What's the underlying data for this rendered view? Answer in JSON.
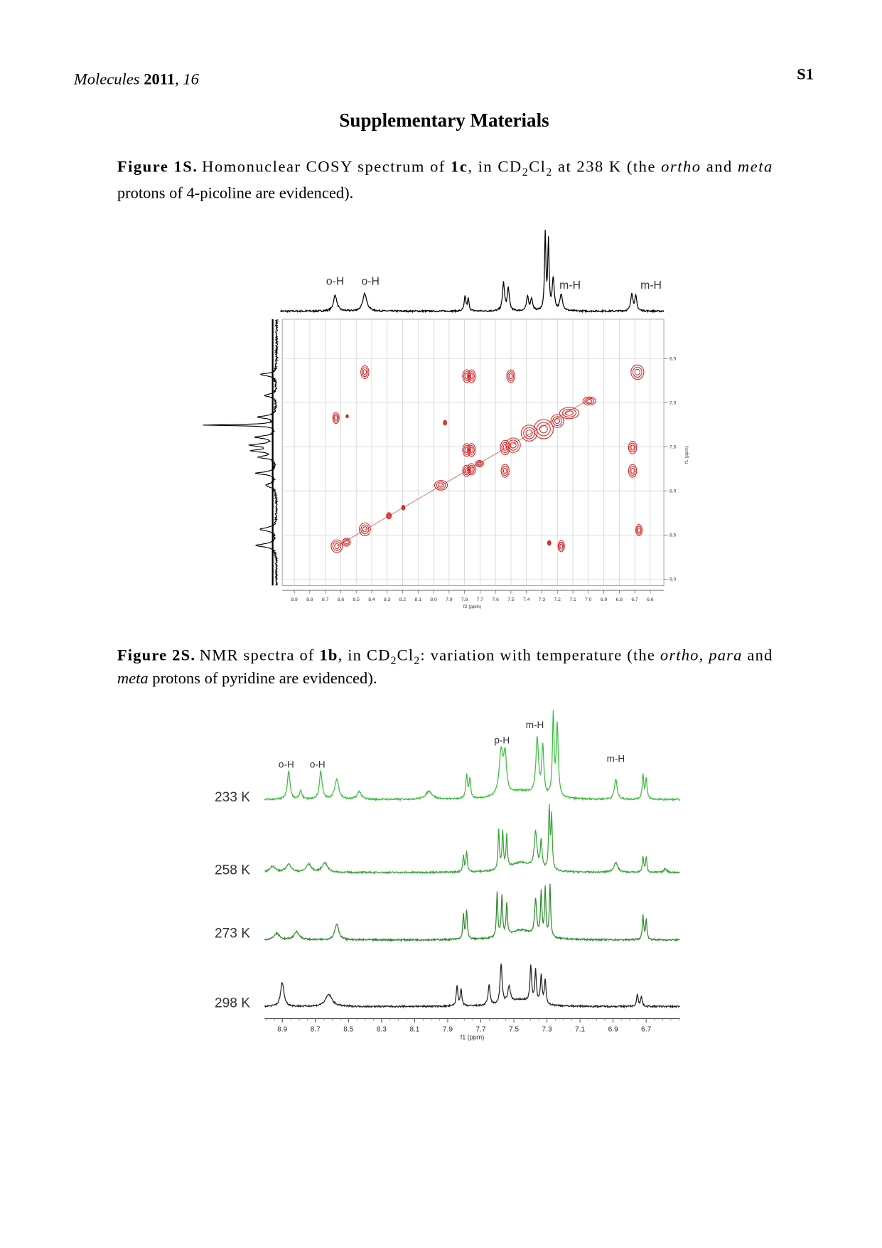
{
  "header": {
    "journal": "Molecules",
    "year": "2011",
    "volume": "16",
    "page": "S1"
  },
  "title": "Supplementary Materials",
  "figures": [
    {
      "label": "Figure 1S.",
      "caption": [
        "Homonuclear COSY spectrum of ",
        "1c",
        ", in CD",
        "2",
        "Cl",
        "2",
        " at 238 K (the ",
        "ortho",
        " and ",
        "meta",
        "protons of 4-picoline are evidenced)."
      ],
      "peak_labels": [
        "o-H",
        "o-H",
        "m-H",
        "m-H"
      ],
      "x_ticks": [
        "8.9",
        "8.8",
        "8.7",
        "8.6",
        "8.5",
        "8.4",
        "8.3",
        "8.2",
        "8.1",
        "8.0",
        "7.9",
        "7.8",
        "7.7",
        "7.6",
        "7.5",
        "7.4",
        "7.3",
        "7.2",
        "7.1",
        "7.0",
        "6.9",
        "6.8",
        "6.7",
        "6.6"
      ],
      "x_label": "f2 (ppm)",
      "y_ticks": [
        "6.5",
        "7.0",
        "7.5",
        "8.0",
        "8.5",
        "9.0"
      ],
      "y_label": "f1 (ppm)"
    },
    {
      "label": "Figure 2S.",
      "caption": [
        "NMR spectra of ",
        "1b",
        ", in CD",
        "2",
        "Cl",
        "2",
        ": variation with temperature (the ",
        "ortho, para",
        " and",
        "meta",
        " protons of pyridine are evidenced)."
      ],
      "peak_labels": [
        "o-H",
        "o-H",
        "p-H",
        "m-H",
        "m-H"
      ],
      "temperatures": [
        "233 K",
        "258 K",
        "273 K",
        "298 K"
      ],
      "x_ticks": [
        "8.9",
        "8.7",
        "8.5",
        "8.3",
        "8.1",
        "7.9",
        "7.7",
        "7.5",
        "7.3",
        "7.1",
        "6.9",
        "6.7"
      ],
      "x_label": "f1 (ppm)"
    }
  ]
}
